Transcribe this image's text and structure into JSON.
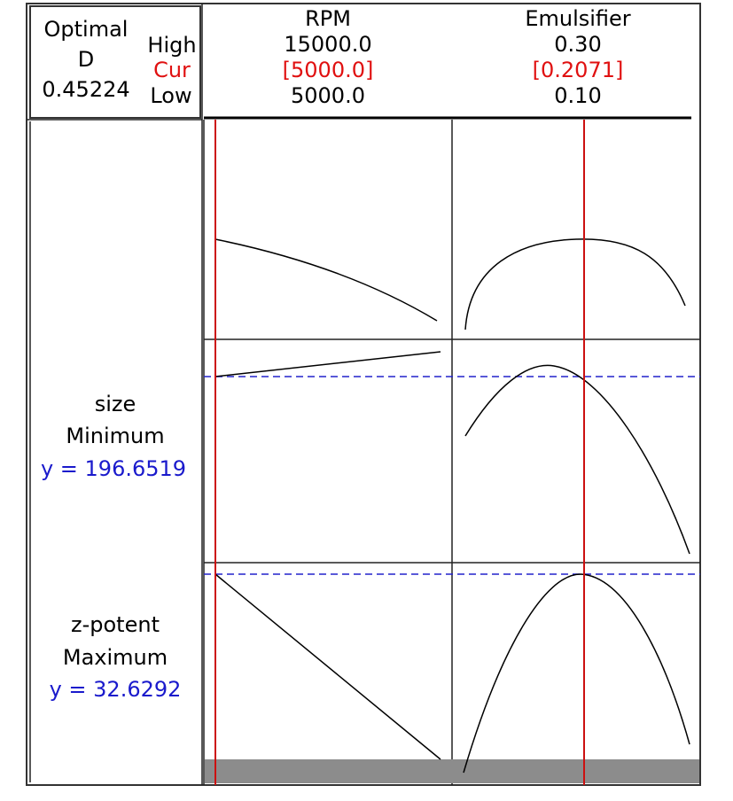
{
  "optimal": {
    "label": "Optimal",
    "d_label": "D",
    "d_value": "0.45224"
  },
  "levels": {
    "high": "High",
    "cur": "Cur",
    "low": "Low"
  },
  "factors": [
    {
      "name": "RPM",
      "high": "15000.0",
      "cur": "[5000.0]",
      "low": "5000.0"
    },
    {
      "name": "Emulsifier",
      "high": "0.30",
      "cur": "[0.2071]",
      "low": "0.10"
    }
  ],
  "responses": [
    {
      "name": "size",
      "goal": "Minimum",
      "prediction": "y = 196.6519"
    },
    {
      "name": "z-potent",
      "goal": "Maximum",
      "prediction": "y = 32.6292"
    }
  ]
}
